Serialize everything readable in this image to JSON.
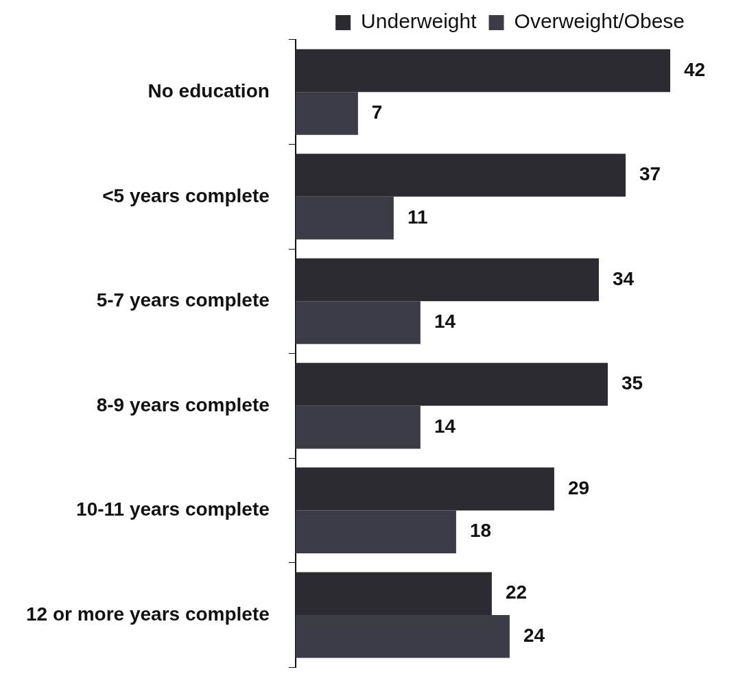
{
  "chart_data": {
    "type": "bar",
    "orientation": "horizontal",
    "categories": [
      "No education",
      "<5 years complete",
      "5-7 years complete",
      "8-9 years complete",
      "10-11 years complete",
      "12 or more years complete"
    ],
    "series": [
      {
        "name": "Underweight",
        "color": "#2b2b31",
        "values": [
          42,
          37,
          34,
          35,
          29,
          22
        ]
      },
      {
        "name": "Overweight/Obese",
        "color": "#3c3c46",
        "values": [
          7,
          11,
          14,
          14,
          18,
          24
        ]
      }
    ],
    "data_labels": true,
    "legend": "top right",
    "tick_labels": "y"
  }
}
